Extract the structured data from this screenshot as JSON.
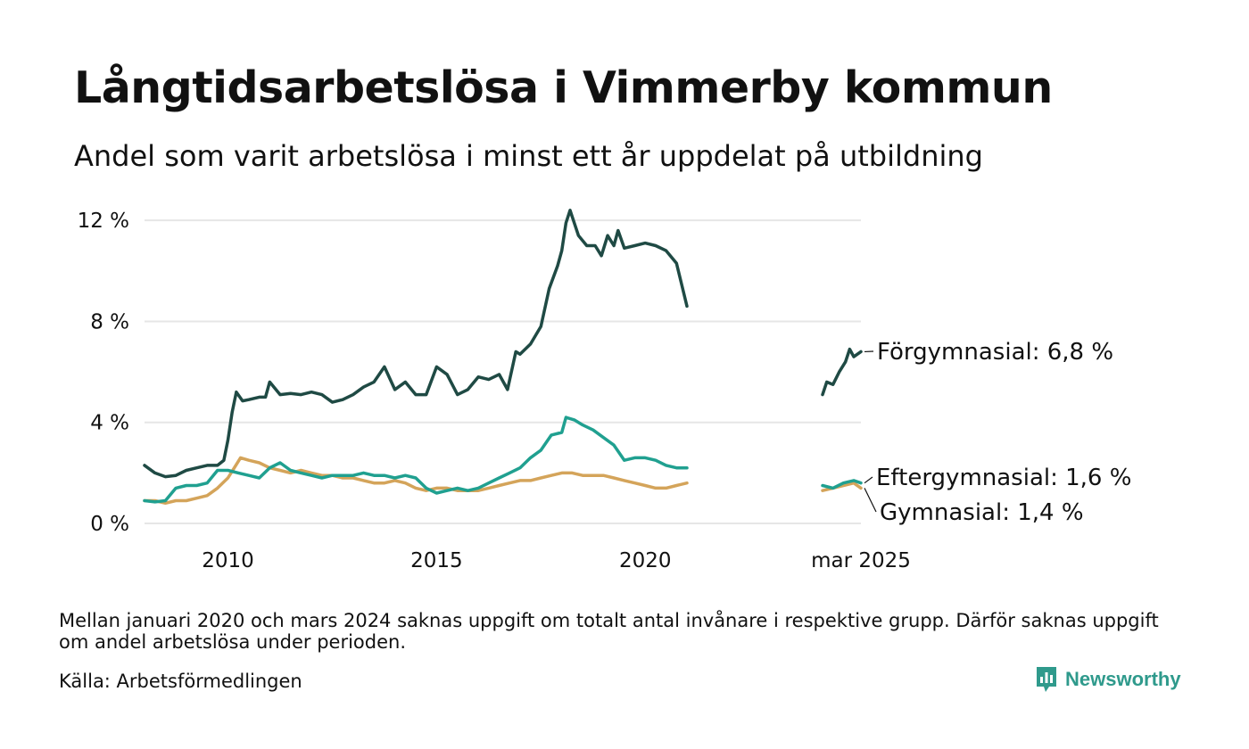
{
  "header": {
    "title": "Långtidsarbetslösa i Vimmerby kommun",
    "subtitle": "Andel som varit arbetslösa i minst ett år uppdelat på utbildning"
  },
  "footer": {
    "note": "Mellan januari 2020 och mars 2024 saknas uppgift om totalt antal invånare i respektive grupp. Därför saknas uppgift om andel arbetslösa under perioden.",
    "source": "Källa: Arbetsförmedlingen",
    "brand": "Newsworthy"
  },
  "colors": {
    "forgymnasial": "#1f4a44",
    "eftergymnasial": "#20a090",
    "gymnasial": "#d4a45a",
    "grid": "#e6e6e6",
    "brand": "#2f9a8c"
  },
  "chart_data": {
    "type": "line",
    "x_axis": {
      "ticks": [
        {
          "x": 2010.0,
          "label": "2010"
        },
        {
          "x": 2015.0,
          "label": "2015"
        },
        {
          "x": 2020.0,
          "label": "2020"
        },
        {
          "x": 2025.17,
          "label": "mar 2025"
        }
      ],
      "range": [
        2008.0,
        2025.17
      ]
    },
    "y_axis": {
      "ticks": [
        {
          "y": 0,
          "label": "0 %"
        },
        {
          "y": 4,
          "label": "4 %"
        },
        {
          "y": 8,
          "label": "8 %"
        },
        {
          "y": 12,
          "label": "12 %"
        }
      ],
      "range": [
        0,
        12.5
      ],
      "grid": true
    },
    "legend": "direct labels at line ends",
    "series": [
      {
        "key": "forgymnasial",
        "label": "Förgymnasial: 6,8 %",
        "segments": [
          [
            [
              2008.0,
              2.3
            ],
            [
              2008.25,
              2.0
            ],
            [
              2008.5,
              1.85
            ],
            [
              2008.75,
              1.9
            ],
            [
              2009.0,
              2.1
            ],
            [
              2009.25,
              2.2
            ],
            [
              2009.5,
              2.3
            ],
            [
              2009.75,
              2.3
            ],
            [
              2009.9,
              2.5
            ],
            [
              2010.0,
              3.3
            ],
            [
              2010.1,
              4.4
            ],
            [
              2010.2,
              5.2
            ],
            [
              2010.35,
              4.85
            ],
            [
              2010.5,
              4.9
            ],
            [
              2010.75,
              5.0
            ],
            [
              2010.9,
              5.0
            ],
            [
              2011.0,
              5.6
            ],
            [
              2011.25,
              5.1
            ],
            [
              2011.5,
              5.15
            ],
            [
              2011.75,
              5.1
            ],
            [
              2012.0,
              5.2
            ],
            [
              2012.25,
              5.1
            ],
            [
              2012.5,
              4.8
            ],
            [
              2012.75,
              4.9
            ],
            [
              2013.0,
              5.1
            ],
            [
              2013.25,
              5.4
            ],
            [
              2013.5,
              5.6
            ],
            [
              2013.75,
              6.2
            ],
            [
              2014.0,
              5.3
            ],
            [
              2014.25,
              5.6
            ],
            [
              2014.5,
              5.1
            ],
            [
              2014.75,
              5.1
            ],
            [
              2015.0,
              6.2
            ],
            [
              2015.25,
              5.9
            ],
            [
              2015.5,
              5.1
            ],
            [
              2015.75,
              5.3
            ],
            [
              2016.0,
              5.8
            ],
            [
              2016.25,
              5.7
            ],
            [
              2016.5,
              5.9
            ],
            [
              2016.7,
              5.3
            ],
            [
              2016.9,
              6.8
            ],
            [
              2017.0,
              6.7
            ],
            [
              2017.25,
              7.1
            ],
            [
              2017.5,
              7.8
            ],
            [
              2017.7,
              9.3
            ],
            [
              2017.9,
              10.2
            ],
            [
              2018.0,
              10.8
            ],
            [
              2018.1,
              11.9
            ],
            [
              2018.2,
              12.4
            ],
            [
              2018.4,
              11.4
            ],
            [
              2018.6,
              11.0
            ],
            [
              2018.8,
              11.0
            ],
            [
              2018.95,
              10.6
            ],
            [
              2019.1,
              11.4
            ],
            [
              2019.25,
              11.0
            ],
            [
              2019.35,
              11.6
            ],
            [
              2019.5,
              10.9
            ],
            [
              2019.75,
              11.0
            ],
            [
              2020.0,
              11.1
            ],
            [
              2020.25,
              11.0
            ],
            [
              2020.5,
              10.8
            ],
            [
              2020.75,
              10.3
            ],
            [
              2021.0,
              8.6
            ]
          ],
          [
            [
              2024.25,
              5.1
            ],
            [
              2024.35,
              5.6
            ],
            [
              2024.5,
              5.5
            ],
            [
              2024.65,
              6.0
            ],
            [
              2024.8,
              6.4
            ],
            [
              2024.9,
              6.9
            ],
            [
              2025.0,
              6.6
            ],
            [
              2025.17,
              6.8
            ]
          ]
        ]
      },
      {
        "key": "eftergymnasial",
        "label": "Eftergymnasial: 1,6 %",
        "segments": [
          [
            [
              2008.0,
              0.9
            ],
            [
              2008.25,
              0.85
            ],
            [
              2008.5,
              0.9
            ],
            [
              2008.75,
              1.4
            ],
            [
              2009.0,
              1.5
            ],
            [
              2009.25,
              1.5
            ],
            [
              2009.5,
              1.6
            ],
            [
              2009.75,
              2.1
            ],
            [
              2010.0,
              2.1
            ],
            [
              2010.25,
              2.0
            ],
            [
              2010.5,
              1.9
            ],
            [
              2010.75,
              1.8
            ],
            [
              2011.0,
              2.2
            ],
            [
              2011.25,
              2.4
            ],
            [
              2011.5,
              2.1
            ],
            [
              2011.75,
              2.0
            ],
            [
              2012.0,
              1.9
            ],
            [
              2012.25,
              1.8
            ],
            [
              2012.5,
              1.9
            ],
            [
              2012.75,
              1.9
            ],
            [
              2013.0,
              1.9
            ],
            [
              2013.25,
              2.0
            ],
            [
              2013.5,
              1.9
            ],
            [
              2013.75,
              1.9
            ],
            [
              2014.0,
              1.8
            ],
            [
              2014.25,
              1.9
            ],
            [
              2014.5,
              1.8
            ],
            [
              2014.75,
              1.4
            ],
            [
              2015.0,
              1.2
            ],
            [
              2015.25,
              1.3
            ],
            [
              2015.5,
              1.4
            ],
            [
              2015.75,
              1.3
            ],
            [
              2016.0,
              1.4
            ],
            [
              2016.25,
              1.6
            ],
            [
              2016.5,
              1.8
            ],
            [
              2016.75,
              2.0
            ],
            [
              2017.0,
              2.2
            ],
            [
              2017.25,
              2.6
            ],
            [
              2017.5,
              2.9
            ],
            [
              2017.75,
              3.5
            ],
            [
              2018.0,
              3.6
            ],
            [
              2018.1,
              4.2
            ],
            [
              2018.3,
              4.1
            ],
            [
              2018.5,
              3.9
            ],
            [
              2018.75,
              3.7
            ],
            [
              2019.0,
              3.4
            ],
            [
              2019.25,
              3.1
            ],
            [
              2019.5,
              2.5
            ],
            [
              2019.75,
              2.6
            ],
            [
              2020.0,
              2.6
            ],
            [
              2020.25,
              2.5
            ],
            [
              2020.5,
              2.3
            ],
            [
              2020.75,
              2.2
            ],
            [
              2021.0,
              2.2
            ]
          ],
          [
            [
              2024.25,
              1.5
            ],
            [
              2024.5,
              1.4
            ],
            [
              2024.75,
              1.6
            ],
            [
              2025.0,
              1.7
            ],
            [
              2025.17,
              1.6
            ]
          ]
        ]
      },
      {
        "key": "gymnasial",
        "label": "Gymnasial: 1,4 %",
        "segments": [
          [
            [
              2008.0,
              0.9
            ],
            [
              2008.25,
              0.9
            ],
            [
              2008.5,
              0.8
            ],
            [
              2008.75,
              0.9
            ],
            [
              2009.0,
              0.9
            ],
            [
              2009.25,
              1.0
            ],
            [
              2009.5,
              1.1
            ],
            [
              2009.75,
              1.4
            ],
            [
              2010.0,
              1.8
            ],
            [
              2010.15,
              2.2
            ],
            [
              2010.3,
              2.6
            ],
            [
              2010.5,
              2.5
            ],
            [
              2010.75,
              2.4
            ],
            [
              2011.0,
              2.2
            ],
            [
              2011.25,
              2.1
            ],
            [
              2011.5,
              2.0
            ],
            [
              2011.75,
              2.1
            ],
            [
              2012.0,
              2.0
            ],
            [
              2012.25,
              1.9
            ],
            [
              2012.5,
              1.9
            ],
            [
              2012.75,
              1.8
            ],
            [
              2013.0,
              1.8
            ],
            [
              2013.25,
              1.7
            ],
            [
              2013.5,
              1.6
            ],
            [
              2013.75,
              1.6
            ],
            [
              2014.0,
              1.7
            ],
            [
              2014.25,
              1.6
            ],
            [
              2014.5,
              1.4
            ],
            [
              2014.75,
              1.3
            ],
            [
              2015.0,
              1.4
            ],
            [
              2015.25,
              1.4
            ],
            [
              2015.5,
              1.3
            ],
            [
              2015.75,
              1.3
            ],
            [
              2016.0,
              1.3
            ],
            [
              2016.25,
              1.4
            ],
            [
              2016.5,
              1.5
            ],
            [
              2016.75,
              1.6
            ],
            [
              2017.0,
              1.7
            ],
            [
              2017.25,
              1.7
            ],
            [
              2017.5,
              1.8
            ],
            [
              2017.75,
              1.9
            ],
            [
              2018.0,
              2.0
            ],
            [
              2018.25,
              2.0
            ],
            [
              2018.5,
              1.9
            ],
            [
              2018.75,
              1.9
            ],
            [
              2019.0,
              1.9
            ],
            [
              2019.25,
              1.8
            ],
            [
              2019.5,
              1.7
            ],
            [
              2019.75,
              1.6
            ],
            [
              2020.0,
              1.5
            ],
            [
              2020.25,
              1.4
            ],
            [
              2020.5,
              1.4
            ],
            [
              2020.75,
              1.5
            ],
            [
              2021.0,
              1.6
            ]
          ],
          [
            [
              2024.25,
              1.3
            ],
            [
              2024.5,
              1.4
            ],
            [
              2024.75,
              1.5
            ],
            [
              2025.0,
              1.6
            ],
            [
              2025.17,
              1.4
            ]
          ]
        ]
      }
    ]
  }
}
